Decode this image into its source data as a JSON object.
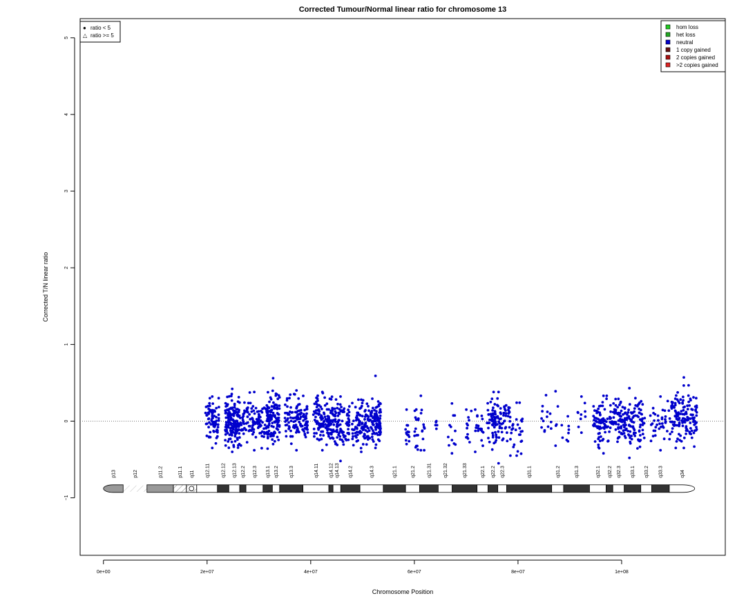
{
  "chart_data": {
    "type": "scatter",
    "title": "Corrected Tumour/Normal linear ratio for chromosome  13",
    "xlabel": "Chromosome Position",
    "ylabel": "Corrected T/N linear ratio",
    "xlim": [
      -4500000,
      120000000
    ],
    "ylim": [
      -1.75,
      5.25
    ],
    "x_ticks": [
      {
        "value": 0,
        "label": "0e+00"
      },
      {
        "value": 20000000,
        "label": "2e+07"
      },
      {
        "value": 40000000,
        "label": "4e+07"
      },
      {
        "value": 60000000,
        "label": "6e+07"
      },
      {
        "value": 80000000,
        "label": "8e+07"
      },
      {
        "value": 100000000,
        "label": "1e+08"
      }
    ],
    "y_ticks": [
      {
        "value": -1,
        "label": "−1"
      },
      {
        "value": 0,
        "label": "0"
      },
      {
        "value": 1,
        "label": "1"
      },
      {
        "value": 2,
        "label": "2"
      },
      {
        "value": 3,
        "label": "3"
      },
      {
        "value": 4,
        "label": "4"
      },
      {
        "value": 5,
        "label": "5"
      }
    ],
    "reference_line": {
      "y": 0,
      "style": "dotted"
    },
    "point_color": "#0000cc",
    "shape_legend": {
      "position": "top-left",
      "items": [
        {
          "symbol": "●",
          "label": "ratio < 5"
        },
        {
          "symbol": "△",
          "label": "ratio >= 5"
        }
      ]
    },
    "color_legend": {
      "position": "top-right",
      "items": [
        {
          "label": "hom loss",
          "color": "#22cc22"
        },
        {
          "label": "het loss",
          "color": "#22aa22"
        },
        {
          "label": "neutral",
          "color": "#0000cc"
        },
        {
          "label": "1 copy gained",
          "color": "#661111"
        },
        {
          "label": "2 copies gained",
          "color": "#aa1111"
        },
        {
          "label": ">2 copies gained",
          "color": "#dd2222"
        }
      ]
    },
    "clusters": [
      {
        "x_start": 19700000,
        "x_end": 22300000,
        "n": 70,
        "y_mean": 0.0,
        "y_sd": 0.13,
        "y_min": -0.35,
        "y_max": 0.32
      },
      {
        "x_start": 23500000,
        "x_end": 26200000,
        "n": 150,
        "y_mean": 0.0,
        "y_sd": 0.15,
        "y_min": -0.4,
        "y_max": 0.42
      },
      {
        "x_start": 26200000,
        "x_end": 32000000,
        "n": 130,
        "y_mean": 0.0,
        "y_sd": 0.14,
        "y_min": -0.38,
        "y_max": 0.38
      },
      {
        "x_start": 31500000,
        "x_end": 34000000,
        "n": 110,
        "y_mean": 0.06,
        "y_sd": 0.15,
        "y_min": -0.3,
        "y_max": 0.56
      },
      {
        "x_start": 35000000,
        "x_end": 39500000,
        "n": 120,
        "y_mean": 0.0,
        "y_sd": 0.14,
        "y_min": -0.38,
        "y_max": 0.4
      },
      {
        "x_start": 40500000,
        "x_end": 44000000,
        "n": 120,
        "y_mean": 0.02,
        "y_sd": 0.14,
        "y_min": -0.38,
        "y_max": 0.38
      },
      {
        "x_start": 44000000,
        "x_end": 47500000,
        "n": 100,
        "y_mean": -0.03,
        "y_sd": 0.14,
        "y_min": -0.52,
        "y_max": 0.32
      },
      {
        "x_start": 48000000,
        "x_end": 51500000,
        "n": 100,
        "y_mean": -0.02,
        "y_sd": 0.14,
        "y_min": -0.4,
        "y_max": 0.28
      },
      {
        "x_start": 51500000,
        "x_end": 53500000,
        "n": 90,
        "y_mean": 0.0,
        "y_sd": 0.15,
        "y_min": -0.35,
        "y_max": 0.59
      },
      {
        "x_start": 58000000,
        "x_end": 59000000,
        "n": 12,
        "y_mean": -0.1,
        "y_sd": 0.12,
        "y_min": -0.3,
        "y_max": 0.15
      },
      {
        "x_start": 60000000,
        "x_end": 62500000,
        "n": 25,
        "y_mean": -0.12,
        "y_sd": 0.16,
        "y_min": -0.38,
        "y_max": 0.33
      },
      {
        "x_start": 64000000,
        "x_end": 64500000,
        "n": 3,
        "y_mean": -0.05,
        "y_sd": 0.05,
        "y_min": -0.1,
        "y_max": 0.0
      },
      {
        "x_start": 66500000,
        "x_end": 68000000,
        "n": 10,
        "y_mean": -0.15,
        "y_sd": 0.15,
        "y_min": -0.42,
        "y_max": 0.23
      },
      {
        "x_start": 70000000,
        "x_end": 73500000,
        "n": 30,
        "y_mean": -0.08,
        "y_sd": 0.12,
        "y_min": -0.4,
        "y_max": 0.15
      },
      {
        "x_start": 74000000,
        "x_end": 78500000,
        "n": 110,
        "y_mean": 0.0,
        "y_sd": 0.14,
        "y_min": -0.55,
        "y_max": 0.38
      },
      {
        "x_start": 78500000,
        "x_end": 81000000,
        "n": 25,
        "y_mean": -0.1,
        "y_sd": 0.15,
        "y_min": -0.45,
        "y_max": 0.24
      },
      {
        "x_start": 84500000,
        "x_end": 90000000,
        "n": 25,
        "y_mean": -0.02,
        "y_sd": 0.14,
        "y_min": -0.32,
        "y_max": 0.39
      },
      {
        "x_start": 91500000,
        "x_end": 93000000,
        "n": 8,
        "y_mean": 0.02,
        "y_sd": 0.12,
        "y_min": -0.15,
        "y_max": 0.32
      },
      {
        "x_start": 94500000,
        "x_end": 98500000,
        "n": 90,
        "y_mean": 0.0,
        "y_sd": 0.14,
        "y_min": -0.42,
        "y_max": 0.33
      },
      {
        "x_start": 98500000,
        "x_end": 104500000,
        "n": 150,
        "y_mean": 0.0,
        "y_sd": 0.15,
        "y_min": -0.48,
        "y_max": 0.43
      },
      {
        "x_start": 105500000,
        "x_end": 109500000,
        "n": 40,
        "y_mean": -0.06,
        "y_sd": 0.13,
        "y_min": -0.38,
        "y_max": 0.32
      },
      {
        "x_start": 109500000,
        "x_end": 114500000,
        "n": 140,
        "y_mean": 0.04,
        "y_sd": 0.15,
        "y_min": -0.35,
        "y_max": 0.57
      }
    ],
    "ideogram": {
      "y": -0.88,
      "centromere": 17000000,
      "bands": [
        {
          "name": "p13",
          "start": 0,
          "end": 3800000,
          "stain": "gpos50"
        },
        {
          "name": "p12",
          "start": 3800000,
          "end": 8400000,
          "stain": "stalk"
        },
        {
          "name": "p11.2",
          "start": 8400000,
          "end": 13500000,
          "stain": "gpos50"
        },
        {
          "name": "p11.1",
          "start": 13500000,
          "end": 16000000,
          "stain": "acen"
        },
        {
          "name": "q11",
          "start": 16000000,
          "end": 18000000,
          "stain": "acen"
        },
        {
          "name": "q12.11",
          "start": 18000000,
          "end": 22000000,
          "stain": "gneg"
        },
        {
          "name": "q12.12",
          "start": 22000000,
          "end": 24200000,
          "stain": "gpos"
        },
        {
          "name": "q12.13",
          "start": 24200000,
          "end": 26300000,
          "stain": "gneg"
        },
        {
          "name": "q12.2",
          "start": 26300000,
          "end": 27500000,
          "stain": "gpos"
        },
        {
          "name": "q12.3",
          "start": 27500000,
          "end": 30800000,
          "stain": "gneg"
        },
        {
          "name": "q13.1",
          "start": 30800000,
          "end": 32600000,
          "stain": "gpos"
        },
        {
          "name": "q13.2",
          "start": 32600000,
          "end": 34000000,
          "stain": "gneg"
        },
        {
          "name": "q13.3",
          "start": 34000000,
          "end": 38500000,
          "stain": "gpos"
        },
        {
          "name": "q14.11",
          "start": 38500000,
          "end": 43500000,
          "stain": "gneg"
        },
        {
          "name": "q14.12",
          "start": 43500000,
          "end": 44300000,
          "stain": "gpos"
        },
        {
          "name": "q14.13",
          "start": 44300000,
          "end": 45800000,
          "stain": "gneg"
        },
        {
          "name": "q14.2",
          "start": 45800000,
          "end": 49500000,
          "stain": "gpos"
        },
        {
          "name": "q14.3",
          "start": 49500000,
          "end": 54000000,
          "stain": "gneg"
        },
        {
          "name": "q21.1",
          "start": 54000000,
          "end": 58300000,
          "stain": "gpos"
        },
        {
          "name": "q21.2",
          "start": 58300000,
          "end": 61000000,
          "stain": "gneg"
        },
        {
          "name": "q21.31",
          "start": 61000000,
          "end": 64600000,
          "stain": "gpos"
        },
        {
          "name": "q21.32",
          "start": 64600000,
          "end": 67300000,
          "stain": "gneg"
        },
        {
          "name": "q21.33",
          "start": 67300000,
          "end": 72100000,
          "stain": "gpos"
        },
        {
          "name": "q22.1",
          "start": 72100000,
          "end": 74200000,
          "stain": "gneg"
        },
        {
          "name": "q22.2",
          "start": 74200000,
          "end": 76100000,
          "stain": "gpos"
        },
        {
          "name": "q22.3",
          "start": 76100000,
          "end": 77800000,
          "stain": "gneg"
        },
        {
          "name": "q31.1",
          "start": 77800000,
          "end": 86500000,
          "stain": "gpos"
        },
        {
          "name": "q31.2",
          "start": 86500000,
          "end": 88800000,
          "stain": "gneg"
        },
        {
          "name": "q31.3",
          "start": 88800000,
          "end": 93800000,
          "stain": "gpos"
        },
        {
          "name": "q32.1",
          "start": 93800000,
          "end": 97000000,
          "stain": "gneg"
        },
        {
          "name": "q32.2",
          "start": 97000000,
          "end": 98300000,
          "stain": "gpos"
        },
        {
          "name": "q32.3",
          "start": 98300000,
          "end": 100500000,
          "stain": "gneg"
        },
        {
          "name": "q33.1",
          "start": 100500000,
          "end": 103700000,
          "stain": "gpos"
        },
        {
          "name": "q33.2",
          "start": 103700000,
          "end": 105800000,
          "stain": "gneg"
        },
        {
          "name": "q33.3",
          "start": 105800000,
          "end": 109200000,
          "stain": "gpos"
        },
        {
          "name": "q34",
          "start": 109200000,
          "end": 114100000,
          "stain": "gneg"
        }
      ]
    }
  }
}
